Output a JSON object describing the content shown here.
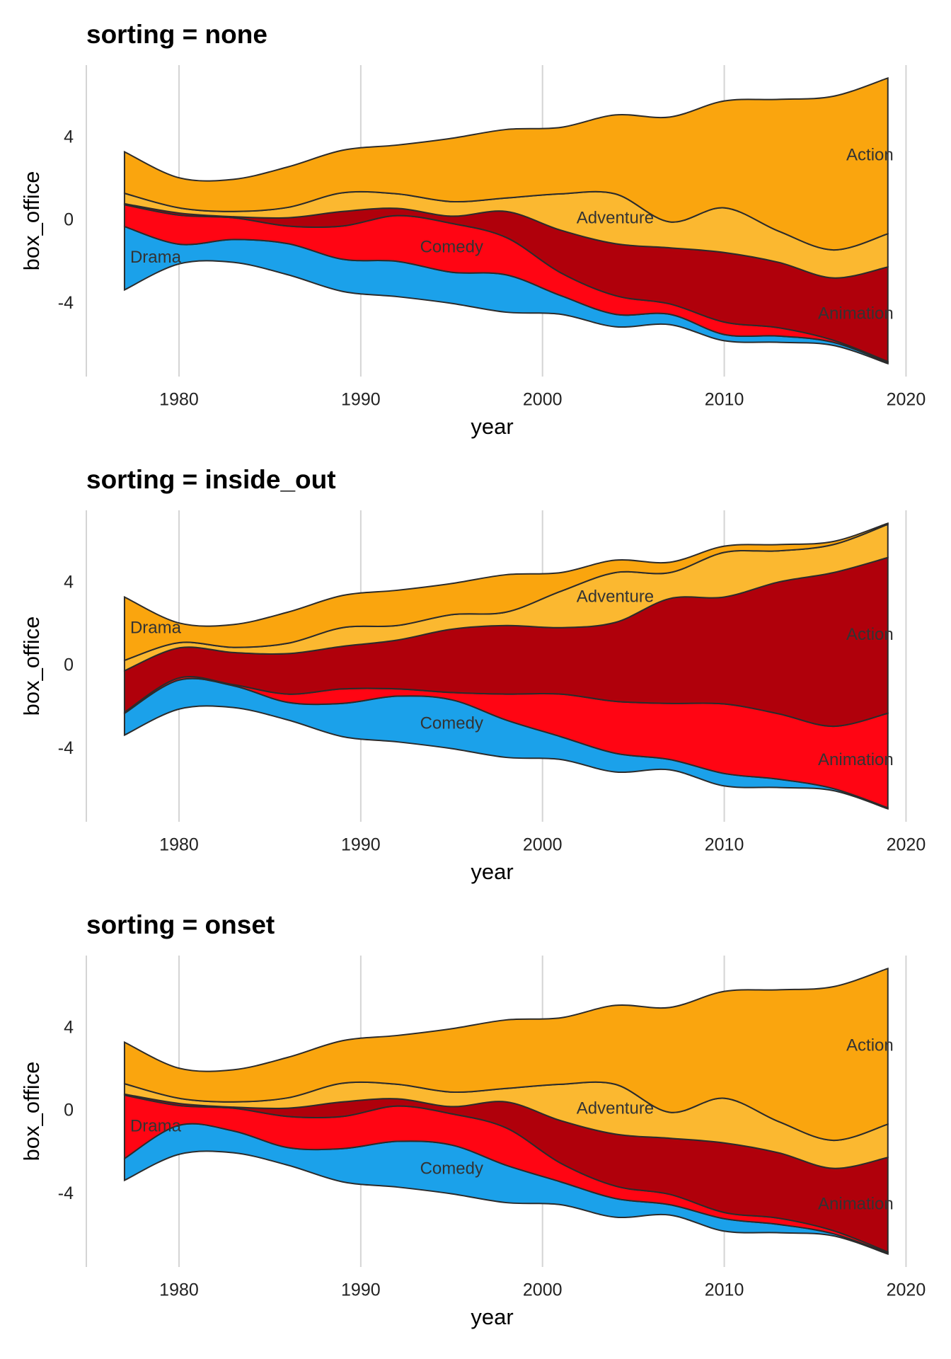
{
  "chart_data": [
    {
      "type": "streamgraph",
      "title": "sorting = none",
      "xlabel": "year",
      "ylabel": "box_office",
      "x": [
        1977,
        1980,
        1983,
        1986,
        1989,
        1992,
        1995,
        1998,
        2001,
        2004,
        2007,
        2010,
        2013,
        2016,
        2019
      ],
      "series": [
        {
          "name": "Drama",
          "color": "#1ba1ea",
          "values": [
            3.05,
            0.95,
            1.1,
            1.5,
            1.55,
            1.7,
            1.5,
            1.8,
            0.9,
            0.6,
            0.5,
            0.3,
            0.3,
            0.15,
            0.05
          ]
        },
        {
          "name": "Comedy",
          "color": "#ff0513",
          "values": [
            1.05,
            1.4,
            1.05,
            0.85,
            1.6,
            2.2,
            2.35,
            1.8,
            1.1,
            0.9,
            0.5,
            0.6,
            0.4,
            0.1,
            0.05
          ]
        },
        {
          "name": "Animation",
          "color": "#b0000b",
          "values": [
            0.05,
            0.1,
            0.05,
            0.4,
            0.7,
            0.35,
            0.35,
            1.25,
            2.05,
            2.5,
            2.7,
            3.35,
            3.15,
            3.0,
            4.55
          ]
        },
        {
          "name": "Adventure",
          "color": "#fbb830",
          "values": [
            0.5,
            0.25,
            0.25,
            0.5,
            0.9,
            0.7,
            0.7,
            0.65,
            1.75,
            2.4,
            1.25,
            2.15,
            1.5,
            1.35,
            1.6
          ]
        },
        {
          "name": "Action",
          "color": "#faa50e",
          "values": [
            2.0,
            1.45,
            1.55,
            1.95,
            2.05,
            2.35,
            3.05,
            3.3,
            3.2,
            3.8,
            5.05,
            5.15,
            6.35,
            7.4,
            7.5
          ]
        }
      ],
      "xlim": [
        1974.9,
        2020.1
      ],
      "ylim": [
        -7.5,
        7.5
      ],
      "xticks": [
        1980,
        1990,
        2000,
        2010,
        2020
      ],
      "yticks": [
        -4,
        0,
        4
      ],
      "grid": "x"
    },
    {
      "type": "streamgraph",
      "title": "sorting = inside_out",
      "xlabel": "year",
      "ylabel": "box_office",
      "x": [
        1977,
        1980,
        1983,
        1986,
        1989,
        1992,
        1995,
        1998,
        2001,
        2004,
        2007,
        2010,
        2013,
        2016,
        2019
      ],
      "series": [
        {
          "name": "Comedy",
          "color": "#1ba1ea",
          "values": [
            1.05,
            1.4,
            1.05,
            0.85,
            1.6,
            2.2,
            2.35,
            1.8,
            1.1,
            0.9,
            0.5,
            0.6,
            0.4,
            0.1,
            0.05
          ]
        },
        {
          "name": "Animation",
          "color": "#ff0513",
          "values": [
            0.05,
            0.1,
            0.05,
            0.4,
            0.7,
            0.35,
            0.35,
            1.25,
            2.05,
            2.5,
            2.7,
            3.35,
            3.15,
            3.0,
            4.55
          ]
        },
        {
          "name": "Action",
          "color": "#b0000b",
          "values": [
            2.0,
            1.45,
            1.55,
            1.95,
            2.05,
            2.35,
            3.05,
            3.3,
            3.2,
            3.8,
            5.05,
            5.15,
            6.35,
            7.4,
            7.5
          ]
        },
        {
          "name": "Adventure",
          "color": "#fbb830",
          "values": [
            0.5,
            0.25,
            0.25,
            0.5,
            0.9,
            0.7,
            0.7,
            0.65,
            1.75,
            2.4,
            1.25,
            2.15,
            1.5,
            1.35,
            1.6
          ]
        },
        {
          "name": "Drama",
          "color": "#faa50e",
          "values": [
            3.05,
            0.95,
            1.1,
            1.5,
            1.55,
            1.7,
            1.5,
            1.8,
            0.9,
            0.6,
            0.5,
            0.3,
            0.3,
            0.15,
            0.05
          ]
        }
      ],
      "xlim": [
        1974.9,
        2020.1
      ],
      "ylim": [
        -7.5,
        7.5
      ],
      "xticks": [
        1980,
        1990,
        2000,
        2010,
        2020
      ],
      "yticks": [
        -4,
        0,
        4
      ],
      "grid": "x"
    },
    {
      "type": "streamgraph",
      "title": "sorting = onset",
      "xlabel": "year",
      "ylabel": "box_office",
      "x": [
        1977,
        1980,
        1983,
        1986,
        1989,
        1992,
        1995,
        1998,
        2001,
        2004,
        2007,
        2010,
        2013,
        2016,
        2019
      ],
      "series": [
        {
          "name": "Comedy",
          "color": "#1ba1ea",
          "values": [
            1.05,
            1.4,
            1.05,
            0.85,
            1.6,
            2.2,
            2.35,
            1.8,
            1.1,
            0.9,
            0.5,
            0.6,
            0.4,
            0.1,
            0.05
          ]
        },
        {
          "name": "Drama",
          "color": "#ff0513",
          "values": [
            3.05,
            0.95,
            1.1,
            1.5,
            1.55,
            1.7,
            1.5,
            1.8,
            0.9,
            0.6,
            0.5,
            0.3,
            0.3,
            0.15,
            0.05
          ]
        },
        {
          "name": "Animation",
          "color": "#b0000b",
          "values": [
            0.05,
            0.1,
            0.05,
            0.4,
            0.7,
            0.35,
            0.35,
            1.25,
            2.05,
            2.5,
            2.7,
            3.35,
            3.15,
            3.0,
            4.55
          ]
        },
        {
          "name": "Adventure",
          "color": "#fbb830",
          "values": [
            0.5,
            0.25,
            0.25,
            0.5,
            0.9,
            0.7,
            0.7,
            0.65,
            1.75,
            2.4,
            1.25,
            2.15,
            1.5,
            1.35,
            1.6
          ]
        },
        {
          "name": "Action",
          "color": "#faa50e",
          "values": [
            2.0,
            1.45,
            1.55,
            1.95,
            2.05,
            2.35,
            3.05,
            3.3,
            3.2,
            3.8,
            5.05,
            5.15,
            6.35,
            7.4,
            7.5
          ]
        }
      ],
      "xlim": [
        1974.9,
        2020.1
      ],
      "ylim": [
        -7.5,
        7.5
      ],
      "xticks": [
        1980,
        1990,
        2000,
        2010,
        2020
      ],
      "yticks": [
        -4,
        0,
        4
      ],
      "grid": "x"
    }
  ]
}
